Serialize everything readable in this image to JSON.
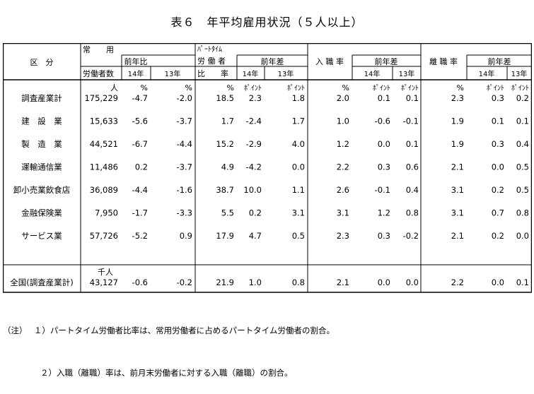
{
  "title": "表６　年平均雇用状況（５人以上）",
  "header": {
    "kubun": "区　分",
    "joyo": "常　　用",
    "rodoshasu": "労働者数",
    "zennenhi": "前年比",
    "parttime": "ﾊﾟｰﾄﾀｲﾑ",
    "rodosha": "労 働 者",
    "hiritsu": "比　　率",
    "zennensa": "前年差",
    "nyushoku": "入 職 率",
    "rishoku": "離 職 率",
    "y14": "14年",
    "y13": "13年"
  },
  "units": {
    "hito": "人",
    "pct": "%",
    "pt": "ﾎﾟｲﾝﾄ",
    "sennin": "千人"
  },
  "rows": [
    {
      "label": "調査産業計",
      "count": "175,229",
      "r14": "-4.7",
      "r13": "-2.0",
      "pr": "18.5",
      "p14": "2.3",
      "p13": "1.8",
      "nr": "2.0",
      "n14": "0.1",
      "n13": "0.1",
      "rr": "2.3",
      "x14": "0.3",
      "x13": "0.2"
    },
    {
      "label": "建　設　業",
      "count": "15,633",
      "r14": "-5.6",
      "r13": "-3.7",
      "pr": "1.7",
      "p14": "-2.4",
      "p13": "1.7",
      "nr": "1.0",
      "n14": "-0.6",
      "n13": "-0.1",
      "rr": "1.9",
      "x14": "0.1",
      "x13": "0.1"
    },
    {
      "label": "製　造　業",
      "count": "44,521",
      "r14": "-6.7",
      "r13": "-4.4",
      "pr": "15.2",
      "p14": "-2.9",
      "p13": "4.0",
      "nr": "1.2",
      "n14": "0.0",
      "n13": "0.1",
      "rr": "1.9",
      "x14": "0.3",
      "x13": "0.4"
    },
    {
      "label": "運輸通信業",
      "count": "11,486",
      "r14": "0.2",
      "r13": "-3.7",
      "pr": "4.9",
      "p14": "-4.2",
      "p13": "0.0",
      "nr": "2.2",
      "n14": "0.3",
      "n13": "0.6",
      "rr": "2.1",
      "x14": "0.0",
      "x13": "0.5"
    },
    {
      "label": "卸小売業飲食店",
      "count": "36,089",
      "r14": "-4.4",
      "r13": "-1.6",
      "pr": "38.7",
      "p14": "10.0",
      "p13": "1.1",
      "nr": "2.6",
      "n14": "-0.1",
      "n13": "0.4",
      "rr": "3.1",
      "x14": "0.2",
      "x13": "0.5"
    },
    {
      "label": "金融保険業",
      "count": "7,950",
      "r14": "-1.7",
      "r13": "-3.3",
      "pr": "5.5",
      "p14": "0.2",
      "p13": "3.1",
      "nr": "3.1",
      "n14": "1.2",
      "n13": "0.8",
      "rr": "3.1",
      "x14": "0.7",
      "x13": "0.8"
    },
    {
      "label": "サービス業",
      "count": "57,726",
      "r14": "-5.2",
      "r13": "0.9",
      "pr": "17.9",
      "p14": "4.7",
      "p13": "0.5",
      "nr": "2.3",
      "n14": "0.3",
      "n13": "-0.2",
      "rr": "2.1",
      "x14": "0.2",
      "x13": "0.0"
    }
  ],
  "total": {
    "label": "全国(調査産業計)",
    "count": "43,127",
    "r14": "-0.6",
    "r13": "-0.2",
    "pr": "21.9",
    "p14": "1.0",
    "p13": "0.8",
    "nr": "2.1",
    "n14": "0.0",
    "n13": "0.0",
    "rr": "2.2",
    "x14": "0.0",
    "x13": "0.1"
  },
  "notes": {
    "prefix": "（注）",
    "n1": "１）パートタイム労働者比率は、常用労働者に占めるパートタイム労働者の割合。",
    "n2": "２）入職（離職）率は、前月末労働者に対する入職（離職）の割合。"
  }
}
